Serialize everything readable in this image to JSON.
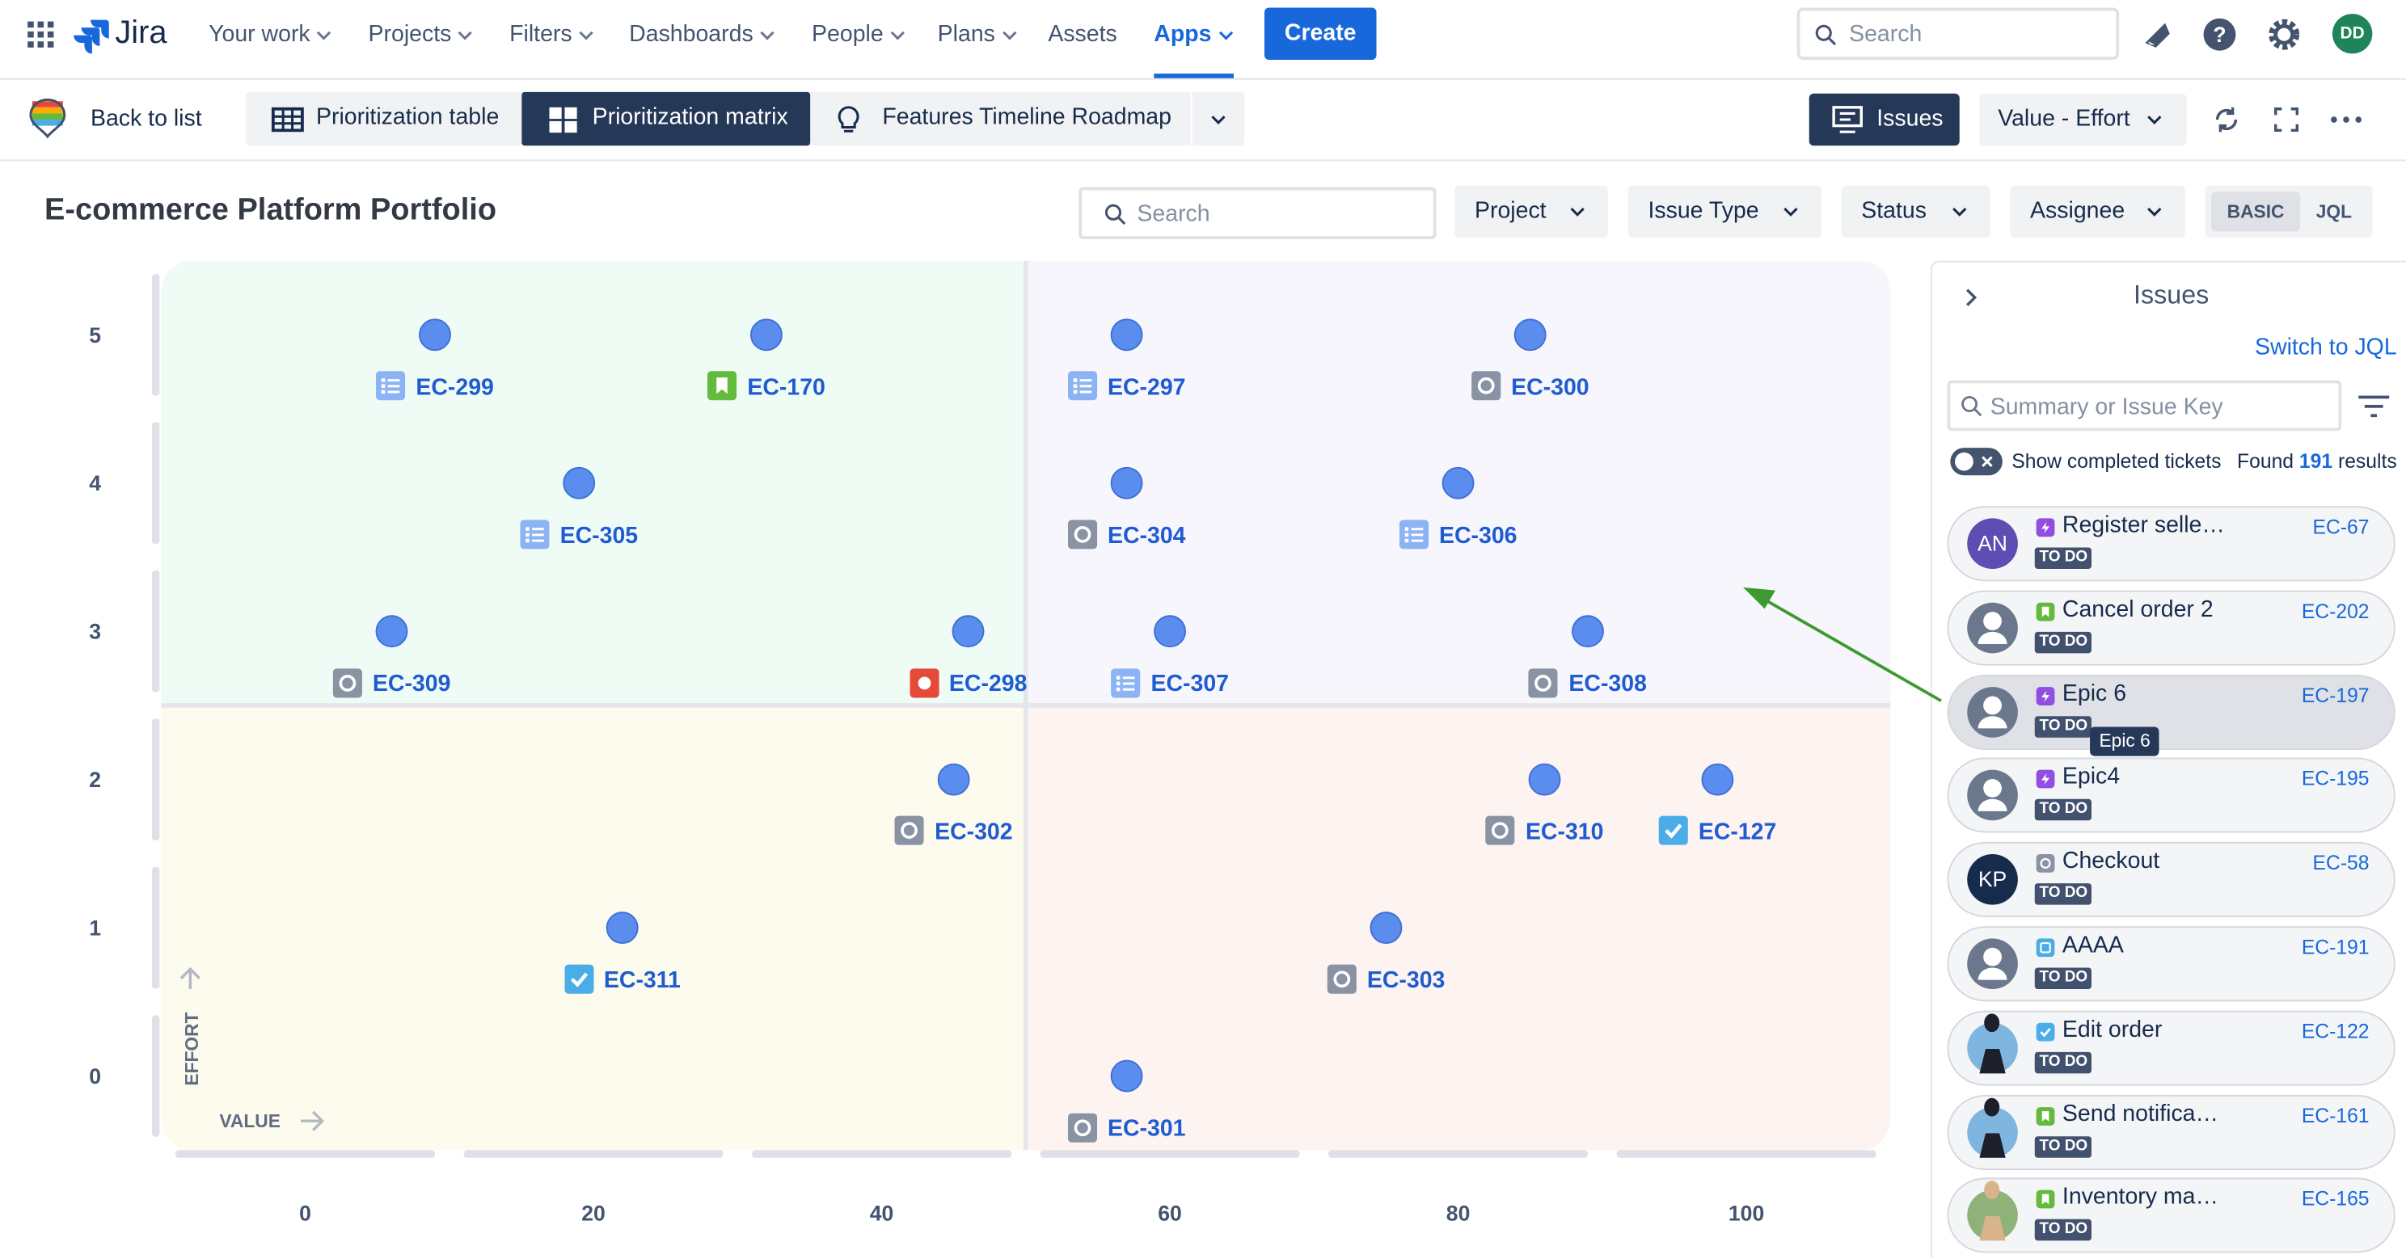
{
  "nav": {
    "product": "Jira",
    "items": [
      "Your work",
      "Projects",
      "Filters",
      "Dashboards",
      "People",
      "Plans",
      "Assets",
      "Apps"
    ],
    "create": "Create",
    "search": "Search",
    "avatar": "DD"
  },
  "toolbar": {
    "back": "Back to list",
    "tabs": [
      "Prioritization table",
      "Prioritization matrix",
      "Features Timeline Roadmap"
    ],
    "issues": "Issues",
    "view": "Value - Effort"
  },
  "header": {
    "title": "E-commerce Platform Portfolio",
    "search": "Search",
    "filters": [
      "Project",
      "Issue Type",
      "Status",
      "Assignee"
    ],
    "modes": [
      "BASIC",
      "JQL"
    ]
  },
  "chart_data": {
    "type": "scatter",
    "x_label": "VALUE",
    "y_label": "EFFORT",
    "labels": [
      "EC-299",
      "EC-170",
      "EC-297",
      "EC-300",
      "EC-305",
      "EC-304",
      "EC-306",
      "EC-309",
      "EC-298",
      "EC-307",
      "EC-308",
      "EC-302",
      "EC-310",
      "EC-127",
      "EC-311",
      "EC-303",
      "EC-301"
    ],
    "icons": [
      "subtask",
      "story",
      "subtask",
      "other",
      "subtask",
      "other",
      "subtask",
      "other",
      "bug",
      "subtask",
      "other",
      "other",
      "other",
      "task",
      "task",
      "other",
      "other"
    ],
    "x": [
      9,
      32,
      57,
      85,
      19,
      57,
      80,
      6,
      46,
      60,
      89,
      45,
      86,
      98,
      22,
      75,
      57
    ],
    "values": [
      5,
      5,
      5,
      5,
      4,
      4,
      4,
      3,
      3,
      3,
      3,
      2,
      2,
      2,
      1,
      1,
      0
    ],
    "color": "#5b8def",
    "xlim": [
      -10,
      110
    ],
    "ylim": [
      -0.5,
      5.5
    ],
    "xticks": [
      0,
      20,
      40,
      60,
      80,
      100
    ],
    "yticks": [
      0,
      1,
      2,
      3,
      4,
      5
    ],
    "quadrant_colors": [
      "#effbf5",
      "#f6f6fc",
      "#fdfbed",
      "#fdf3f1"
    ]
  },
  "panel": {
    "title": "Issues",
    "switch": "Switch to JQL",
    "search": "Summary or Issue Key",
    "toggle": "Show completed tickets",
    "found_prefix": "Found",
    "found_count": "191",
    "found_suffix": "results",
    "tooltip": "Epic 6",
    "items": [
      {
        "avatar": {
          "kind": "initials",
          "text": "AN"
        },
        "type": "epic",
        "summary": "Register selle…",
        "key": "EC-67",
        "status": "TO DO"
      },
      {
        "avatar": {
          "kind": "default"
        },
        "type": "story",
        "summary": "Cancel order 2",
        "key": "EC-202",
        "status": "TO DO"
      },
      {
        "avatar": {
          "kind": "default"
        },
        "type": "epic",
        "summary": "Epic 6",
        "key": "EC-197",
        "status": "TO DO"
      },
      {
        "avatar": {
          "kind": "default"
        },
        "type": "epic",
        "summary": "Epic4",
        "key": "EC-195",
        "status": "TO DO"
      },
      {
        "avatar": {
          "kind": "initials",
          "text": "KP"
        },
        "type": "other",
        "summary": "Checkout",
        "key": "EC-58",
        "status": "TO DO"
      },
      {
        "avatar": {
          "kind": "default"
        },
        "type": "improvement",
        "summary": "AAAA",
        "key": "EC-191",
        "status": "TO DO"
      },
      {
        "avatar": {
          "kind": "photo"
        },
        "type": "task",
        "summary": "Edit order",
        "key": "EC-122",
        "status": "TO DO"
      },
      {
        "avatar": {
          "kind": "photo"
        },
        "type": "story",
        "summary": "Send notifica…",
        "key": "EC-161",
        "status": "TO DO"
      },
      {
        "avatar": {
          "kind": "photo"
        },
        "type": "story",
        "summary": "Inventory ma…",
        "key": "EC-165",
        "status": "TO DO"
      }
    ]
  }
}
